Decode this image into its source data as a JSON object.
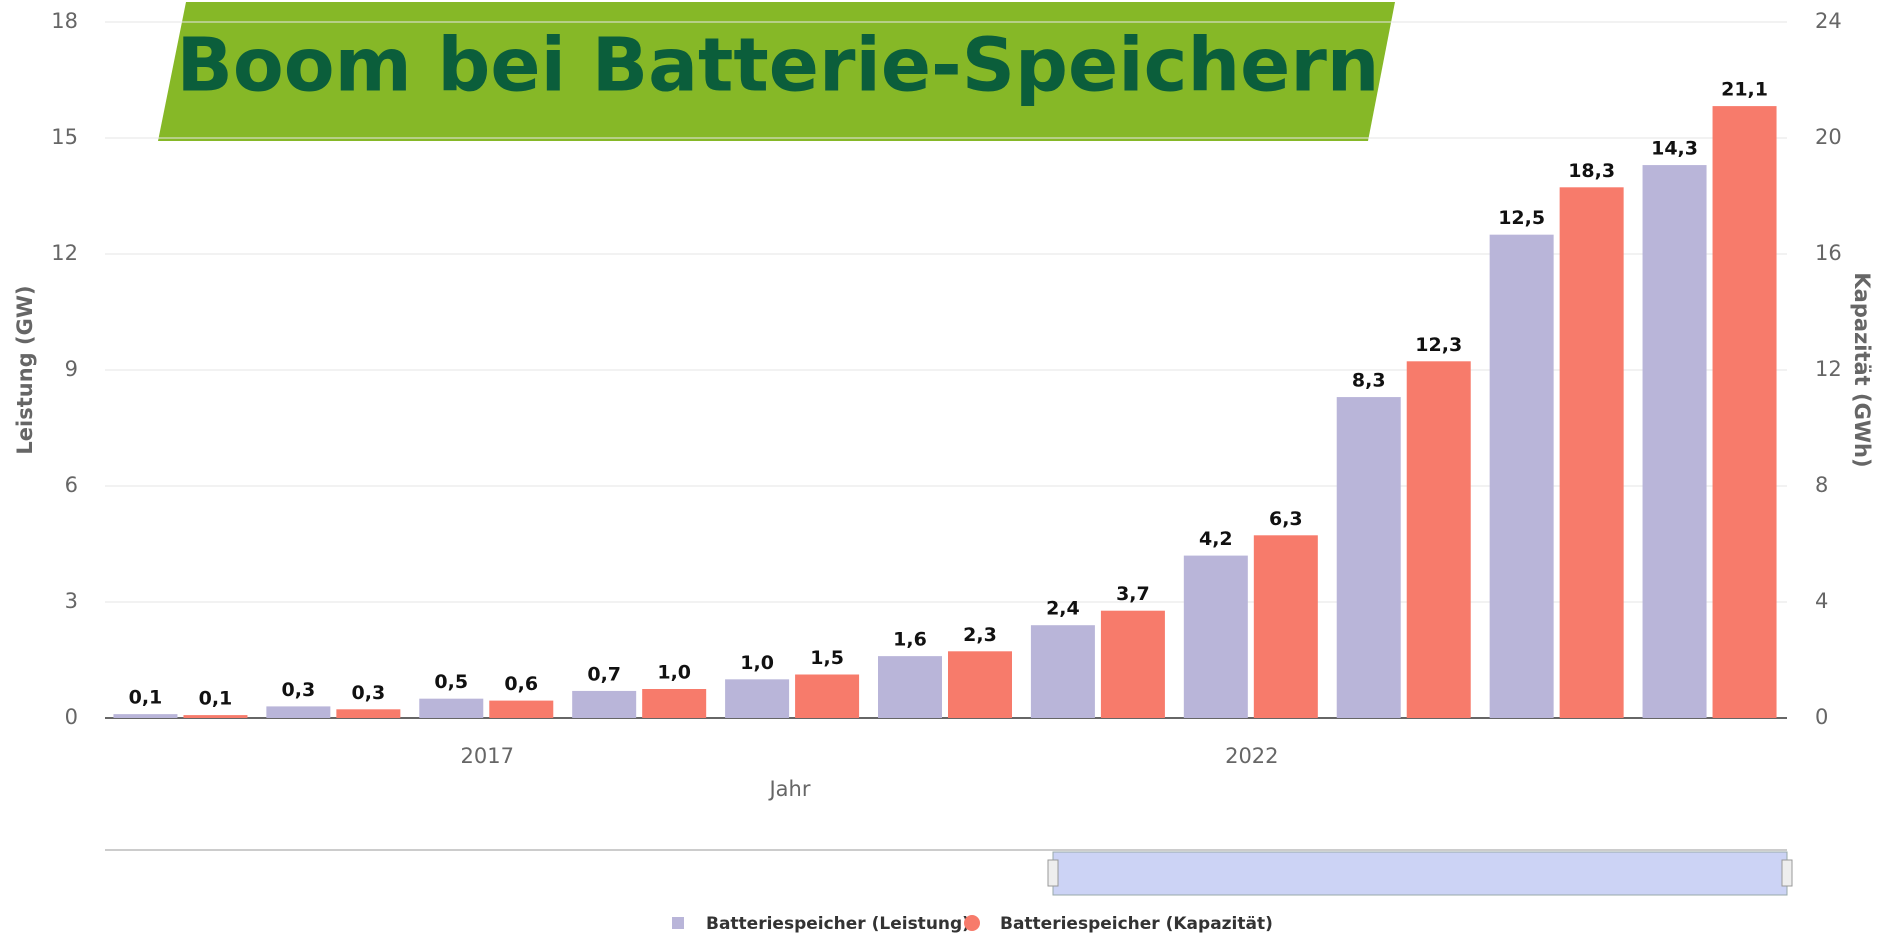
{
  "chart_data": {
    "type": "bar",
    "title": "Boom bei Batterie-Speichern",
    "x_label": "Jahr",
    "y_label": "Leistung (GW)",
    "y2_label": "Kapazität (GWh)",
    "categories": [
      null,
      null,
      "2017",
      null,
      null,
      null,
      null,
      "2022",
      null,
      null,
      null
    ],
    "series": [
      {
        "name": "Batteriespeicher (Leistung)",
        "color": "#b9b5d9",
        "values": [
          0.1,
          0.3,
          0.5,
          0.7,
          1.0,
          1.6,
          2.4,
          4.2,
          8.3,
          12.5,
          14.3
        ],
        "value_labels": [
          "0,1",
          "0,3",
          "0,5",
          "0,7",
          "1,0",
          "1,6",
          "2,4",
          "4,2",
          "8,3",
          "12,5",
          "14,3"
        ]
      },
      {
        "name": "Batteriespeicher (Kapazität)",
        "color": "#f77b6b",
        "axis": "y2",
        "values": [
          0.1,
          0.3,
          0.6,
          1.0,
          1.5,
          2.3,
          3.7,
          6.3,
          12.3,
          18.3,
          21.1
        ],
        "value_labels": [
          "0,1",
          "0,3",
          "0,6",
          "1,0",
          "1,5",
          "2,3",
          "3,7",
          "6,3",
          "12,3",
          "18,3",
          "21,1"
        ]
      }
    ],
    "ylim": [
      0,
      18
    ],
    "yticks": [
      0,
      3,
      6,
      9,
      12,
      15,
      18
    ],
    "y2lim": [
      0,
      24
    ],
    "y2ticks": [
      0,
      4,
      8,
      12,
      16,
      20,
      24
    ],
    "grid": true
  }
}
